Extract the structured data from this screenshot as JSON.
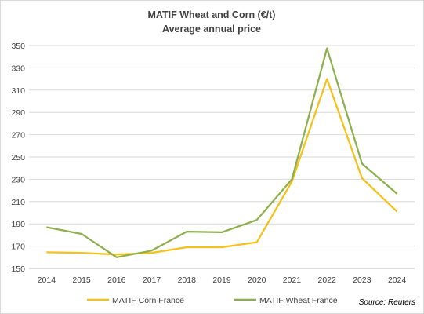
{
  "chart_data": {
    "type": "line",
    "title": "MATIF Wheat and Corn (€/t)",
    "subtitle": "Average annual price",
    "categories": [
      "2014",
      "2015",
      "2016",
      "2017",
      "2018",
      "2019",
      "2020",
      "2021",
      "2022",
      "2023",
      "2024"
    ],
    "series": [
      {
        "name": "MATIF Corn France",
        "color": "#f5c018",
        "values": [
          164.5,
          164,
          162.5,
          164,
          169,
          169,
          173.5,
          228,
          320,
          231,
          201
        ]
      },
      {
        "name": "MATIF Wheat France",
        "color": "#8db04c",
        "values": [
          187,
          181,
          160,
          166,
          183,
          182.5,
          193.5,
          230,
          347.5,
          244,
          217
        ]
      }
    ],
    "y_ticks": [
      "150",
      "170",
      "190",
      "210",
      "230",
      "250",
      "270",
      "290",
      "310",
      "330",
      "350"
    ],
    "ylim": [
      150,
      350
    ],
    "grid": true,
    "legend_position": "bottom",
    "source": "Source: Reuters"
  }
}
